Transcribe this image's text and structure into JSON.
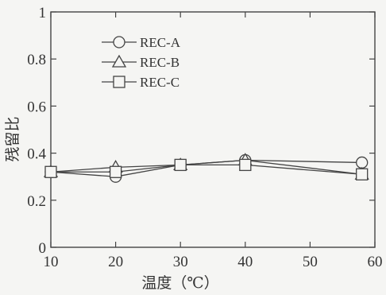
{
  "chart_data": {
    "type": "line",
    "title": "",
    "xlabel": "温度（℃）",
    "ylabel": "残留比",
    "xlim": [
      10,
      60
    ],
    "ylim": [
      0,
      1
    ],
    "xticks": [
      10,
      20,
      30,
      40,
      50,
      60
    ],
    "xtick_labels": [
      "10",
      "20",
      "30",
      "40",
      "50",
      "60"
    ],
    "yticks": [
      0,
      0.2,
      0.4,
      0.6,
      0.8,
      1
    ],
    "ytick_labels": [
      "0",
      "0.2",
      "0.4",
      "0.6",
      "0.8",
      "1"
    ],
    "grid": false,
    "legend_position": "top-left",
    "series": [
      {
        "name": "REC-A",
        "marker": "circle",
        "x": [
          10,
          20,
          30,
          40,
          58
        ],
        "y": [
          0.32,
          0.3,
          0.35,
          0.37,
          0.36
        ]
      },
      {
        "name": "REC-B",
        "marker": "triangle",
        "x": [
          10,
          20,
          30,
          40,
          58
        ],
        "y": [
          0.32,
          0.34,
          0.35,
          0.37,
          0.31
        ]
      },
      {
        "name": "REC-C",
        "marker": "square",
        "x": [
          10,
          20,
          30,
          40,
          58
        ],
        "y": [
          0.32,
          0.32,
          0.35,
          0.35,
          0.31
        ]
      }
    ],
    "line_color": "#444444",
    "marker_fill": "#f5f5f3"
  }
}
